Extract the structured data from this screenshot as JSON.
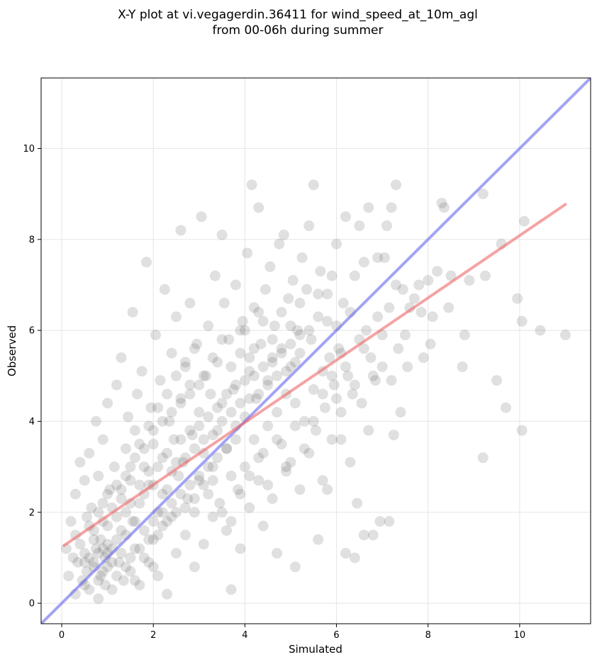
{
  "chart_data": {
    "type": "scatter",
    "title_lines": [
      "X-Y plot at vi.vegagerdin.36411 for wind_speed_at_10m_agl",
      "from 00-06h during summer"
    ],
    "xlabel": "Simulated",
    "ylabel": "Observed",
    "xlim": [
      -0.45,
      11.55
    ],
    "ylim": [
      -0.45,
      11.55
    ],
    "xticks": [
      0,
      2,
      4,
      6,
      8,
      10
    ],
    "yticks": [
      0,
      2,
      4,
      6,
      8,
      10
    ],
    "grid": true,
    "point_color": "#555555",
    "point_opacity": 0.18,
    "identity_line": {
      "x": [
        -0.45,
        11.55
      ],
      "y": [
        -0.45,
        11.55
      ],
      "color": "#6666ee"
    },
    "fit_line": {
      "x": [
        0.05,
        11.0
      ],
      "y": [
        1.27,
        8.77
      ],
      "color": "#ee6666"
    },
    "points": [
      [
        0.1,
        1.2
      ],
      [
        0.15,
        0.6
      ],
      [
        0.2,
        1.8
      ],
      [
        0.25,
        1.0
      ],
      [
        0.3,
        2.4
      ],
      [
        0.3,
        1.5
      ],
      [
        0.35,
        0.9
      ],
      [
        0.4,
        3.1
      ],
      [
        0.4,
        1.3
      ],
      [
        0.45,
        0.5
      ],
      [
        0.5,
        2.7
      ],
      [
        0.5,
        1.1
      ],
      [
        0.55,
        1.9
      ],
      [
        0.55,
        0.7
      ],
      [
        0.6,
        3.3
      ],
      [
        0.6,
        0.3
      ],
      [
        0.65,
        2.1
      ],
      [
        0.7,
        1.6
      ],
      [
        0.7,
        0.9
      ],
      [
        0.75,
        4.0
      ],
      [
        0.75,
        1.2
      ],
      [
        0.8,
        2.8
      ],
      [
        0.8,
        0.1
      ],
      [
        0.85,
        1.4
      ],
      [
        0.85,
        0.6
      ],
      [
        0.9,
        3.6
      ],
      [
        0.9,
        2.2
      ],
      [
        0.95,
        1.0
      ],
      [
        0.95,
        0.4
      ],
      [
        1.0,
        4.4
      ],
      [
        1.0,
        1.7
      ],
      [
        1.0,
        0.8
      ],
      [
        1.05,
        2.5
      ],
      [
        1.1,
        1.2
      ],
      [
        1.1,
        0.3
      ],
      [
        1.15,
        3.0
      ],
      [
        1.2,
        4.8
      ],
      [
        1.2,
        1.9
      ],
      [
        1.25,
        0.9
      ],
      [
        1.3,
        5.4
      ],
      [
        1.3,
        2.3
      ],
      [
        1.3,
        1.1
      ],
      [
        1.35,
        0.5
      ],
      [
        1.4,
        3.4
      ],
      [
        1.4,
        1.5
      ],
      [
        1.45,
        4.1
      ],
      [
        1.5,
        2.7
      ],
      [
        1.5,
        0.7
      ],
      [
        1.55,
        6.4
      ],
      [
        1.55,
        1.8
      ],
      [
        1.6,
        3.8
      ],
      [
        1.6,
        1.2
      ],
      [
        1.65,
        4.6
      ],
      [
        1.7,
        2.2
      ],
      [
        1.7,
        0.4
      ],
      [
        1.75,
        5.1
      ],
      [
        1.8,
        3.0
      ],
      [
        1.8,
        1.6
      ],
      [
        1.85,
        7.5
      ],
      [
        1.9,
        2.6
      ],
      [
        1.9,
        0.9
      ],
      [
        1.95,
        4.3
      ],
      [
        2.0,
        3.5
      ],
      [
        2.0,
        1.4
      ],
      [
        2.05,
        5.9
      ],
      [
        2.1,
        2.0
      ],
      [
        2.1,
        0.6
      ],
      [
        2.15,
        4.9
      ],
      [
        2.2,
        3.2
      ],
      [
        2.2,
        1.7
      ],
      [
        2.25,
        6.9
      ],
      [
        2.3,
        2.5
      ],
      [
        2.3,
        0.2
      ],
      [
        2.35,
        4.0
      ],
      [
        2.4,
        5.5
      ],
      [
        2.4,
        1.9
      ],
      [
        2.45,
        3.6
      ],
      [
        2.5,
        6.3
      ],
      [
        2.5,
        1.1
      ],
      [
        2.55,
        2.8
      ],
      [
        2.6,
        4.5
      ],
      [
        2.6,
        8.2
      ],
      [
        2.65,
        3.1
      ],
      [
        2.7,
        5.2
      ],
      [
        2.7,
        1.5
      ],
      [
        2.75,
        2.3
      ],
      [
        2.8,
        4.8
      ],
      [
        2.8,
        6.6
      ],
      [
        2.85,
        3.7
      ],
      [
        2.9,
        2.0
      ],
      [
        2.9,
        0.8
      ],
      [
        2.95,
        5.7
      ],
      [
        3.0,
        4.2
      ],
      [
        3.0,
        2.7
      ],
      [
        3.05,
        8.5
      ],
      [
        3.1,
        3.3
      ],
      [
        3.1,
        1.3
      ],
      [
        3.15,
        5.0
      ],
      [
        3.2,
        6.1
      ],
      [
        3.2,
        2.4
      ],
      [
        3.25,
        4.6
      ],
      [
        3.3,
        3.0
      ],
      [
        3.3,
        1.9
      ],
      [
        3.35,
        7.2
      ],
      [
        3.4,
        5.3
      ],
      [
        3.4,
        3.8
      ],
      [
        3.45,
        2.2
      ],
      [
        3.5,
        8.1
      ],
      [
        3.5,
        4.4
      ],
      [
        3.55,
        6.6
      ],
      [
        3.6,
        3.4
      ],
      [
        3.6,
        1.6
      ],
      [
        3.65,
        5.8
      ],
      [
        3.7,
        2.8
      ],
      [
        3.7,
        0.3
      ],
      [
        3.75,
        4.7
      ],
      [
        3.8,
        7.0
      ],
      [
        3.8,
        3.9
      ],
      [
        3.85,
        2.5
      ],
      [
        3.9,
        5.5
      ],
      [
        3.9,
        1.2
      ],
      [
        3.95,
        6.2
      ],
      [
        4.0,
        4.1
      ],
      [
        4.0,
        3.0
      ],
      [
        4.05,
        7.7
      ],
      [
        4.1,
        5.1
      ],
      [
        4.1,
        2.1
      ],
      [
        4.15,
        9.2
      ],
      [
        4.2,
        3.6
      ],
      [
        4.2,
        6.5
      ],
      [
        4.25,
        4.5
      ],
      [
        4.3,
        8.7
      ],
      [
        4.3,
        2.7
      ],
      [
        4.35,
        5.7
      ],
      [
        4.4,
        3.3
      ],
      [
        4.4,
        1.7
      ],
      [
        4.45,
        6.9
      ],
      [
        4.5,
        4.8
      ],
      [
        4.5,
        3.9
      ],
      [
        4.55,
        7.4
      ],
      [
        4.6,
        5.3
      ],
      [
        4.6,
        2.3
      ],
      [
        4.65,
        6.1
      ],
      [
        4.7,
        4.2
      ],
      [
        4.7,
        1.1
      ],
      [
        4.75,
        7.9
      ],
      [
        4.8,
        5.6
      ],
      [
        4.8,
        3.5
      ],
      [
        4.85,
        8.1
      ],
      [
        4.9,
        4.6
      ],
      [
        4.9,
        2.9
      ],
      [
        4.95,
        6.7
      ],
      [
        5.0,
        5.2
      ],
      [
        5.0,
        3.1
      ],
      [
        5.05,
        7.1
      ],
      [
        5.1,
        4.4
      ],
      [
        5.1,
        0.8
      ],
      [
        5.15,
        6.0
      ],
      [
        5.2,
        5.5
      ],
      [
        5.2,
        2.5
      ],
      [
        5.25,
        7.6
      ],
      [
        5.3,
        4.0
      ],
      [
        5.35,
        6.9
      ],
      [
        5.4,
        3.3
      ],
      [
        5.4,
        8.3
      ],
      [
        5.45,
        5.8
      ],
      [
        5.5,
        4.7
      ],
      [
        5.5,
        9.2
      ],
      [
        5.55,
        3.8
      ],
      [
        5.6,
        6.3
      ],
      [
        5.6,
        1.4
      ],
      [
        5.65,
        7.3
      ],
      [
        5.7,
        5.1
      ],
      [
        5.7,
        2.7
      ],
      [
        5.75,
        4.3
      ],
      [
        5.8,
        6.8
      ],
      [
        5.8,
        2.5
      ],
      [
        5.85,
        5.4
      ],
      [
        5.9,
        7.2
      ],
      [
        5.9,
        3.6
      ],
      [
        5.95,
        4.8
      ],
      [
        6.0,
        6.1
      ],
      [
        6.0,
        7.9
      ],
      [
        6.05,
        5.6
      ],
      [
        6.1,
        4.2
      ],
      [
        6.1,
        3.6
      ],
      [
        6.15,
        6.6
      ],
      [
        6.2,
        1.1
      ],
      [
        6.2,
        8.5
      ],
      [
        6.25,
        5.0
      ],
      [
        6.3,
        6.4
      ],
      [
        6.3,
        3.1
      ],
      [
        6.35,
        4.6
      ],
      [
        6.4,
        7.2
      ],
      [
        6.4,
        1.0
      ],
      [
        6.45,
        2.2
      ],
      [
        6.5,
        5.8
      ],
      [
        6.5,
        8.3
      ],
      [
        6.55,
        4.4
      ],
      [
        6.6,
        7.5
      ],
      [
        6.6,
        1.5
      ],
      [
        6.65,
        6.0
      ],
      [
        6.7,
        8.7
      ],
      [
        6.7,
        3.8
      ],
      [
        6.75,
        5.4
      ],
      [
        6.8,
        1.5
      ],
      [
        6.85,
        4.9
      ],
      [
        6.9,
        7.6
      ],
      [
        6.9,
        6.3
      ],
      [
        6.95,
        1.8
      ],
      [
        7.0,
        5.2
      ],
      [
        7.05,
        7.6
      ],
      [
        7.1,
        8.3
      ],
      [
        7.15,
        6.5
      ],
      [
        7.15,
        1.8
      ],
      [
        7.2,
        8.7
      ],
      [
        7.2,
        4.9
      ],
      [
        7.25,
        3.7
      ],
      [
        7.3,
        9.2
      ],
      [
        7.3,
        7.0
      ],
      [
        7.35,
        5.6
      ],
      [
        7.4,
        4.2
      ],
      [
        7.45,
        6.9
      ],
      [
        7.5,
        5.9
      ],
      [
        7.55,
        5.2
      ],
      [
        7.6,
        6.5
      ],
      [
        7.7,
        6.7
      ],
      [
        7.8,
        7.0
      ],
      [
        7.85,
        6.4
      ],
      [
        7.9,
        5.4
      ],
      [
        8.0,
        7.1
      ],
      [
        8.05,
        5.7
      ],
      [
        8.1,
        6.3
      ],
      [
        8.2,
        7.3
      ],
      [
        8.3,
        8.8
      ],
      [
        8.35,
        8.7
      ],
      [
        8.45,
        6.5
      ],
      [
        8.5,
        7.2
      ],
      [
        8.75,
        5.2
      ],
      [
        8.8,
        5.9
      ],
      [
        8.9,
        7.1
      ],
      [
        9.2,
        9.0
      ],
      [
        9.2,
        3.2
      ],
      [
        9.25,
        7.2
      ],
      [
        9.5,
        4.9
      ],
      [
        9.6,
        7.9
      ],
      [
        9.7,
        4.3
      ],
      [
        9.95,
        6.7
      ],
      [
        10.05,
        6.2
      ],
      [
        10.05,
        3.8
      ],
      [
        10.1,
        8.4
      ],
      [
        10.45,
        6.0
      ],
      [
        11.0,
        5.9
      ],
      [
        0.6,
        1.0
      ],
      [
        0.8,
        1.1
      ],
      [
        0.9,
        1.2
      ],
      [
        1.0,
        1.1
      ],
      [
        0.7,
        0.8
      ],
      [
        1.1,
        0.9
      ],
      [
        1.2,
        1.4
      ],
      [
        0.9,
        0.7
      ],
      [
        1.3,
        1.6
      ],
      [
        1.0,
        1.3
      ],
      [
        0.8,
        0.5
      ],
      [
        1.4,
        2.0
      ],
      [
        1.5,
        2.2
      ],
      [
        1.6,
        1.8
      ],
      [
        1.7,
        2.6
      ],
      [
        1.8,
        2.4
      ],
      [
        1.9,
        2.9
      ],
      [
        2.0,
        2.6
      ],
      [
        2.1,
        3.0
      ],
      [
        2.2,
        2.4
      ],
      [
        2.3,
        3.3
      ],
      [
        2.4,
        2.9
      ],
      [
        2.5,
        3.1
      ],
      [
        2.6,
        3.6
      ],
      [
        2.7,
        3.2
      ],
      [
        2.8,
        3.8
      ],
      [
        2.9,
        3.4
      ],
      [
        3.0,
        3.9
      ],
      [
        3.1,
        3.6
      ],
      [
        3.2,
        4.1
      ],
      [
        3.3,
        3.7
      ],
      [
        3.4,
        4.3
      ],
      [
        3.5,
        4.0
      ],
      [
        3.6,
        4.6
      ],
      [
        3.7,
        4.2
      ],
      [
        3.8,
        4.8
      ],
      [
        3.9,
        4.4
      ],
      [
        4.0,
        4.9
      ],
      [
        4.1,
        4.5
      ],
      [
        4.2,
        5.0
      ],
      [
        4.3,
        4.6
      ],
      [
        4.4,
        5.2
      ],
      [
        4.5,
        4.9
      ],
      [
        4.6,
        5.4
      ],
      [
        4.7,
        5.0
      ],
      [
        4.8,
        5.5
      ],
      [
        4.9,
        5.1
      ],
      [
        5.0,
        5.7
      ],
      [
        5.1,
        5.3
      ],
      [
        5.2,
        5.9
      ],
      [
        2.0,
        1.8
      ],
      [
        2.2,
        2.0
      ],
      [
        2.4,
        2.2
      ],
      [
        2.6,
        2.4
      ],
      [
        2.8,
        2.6
      ],
      [
        3.0,
        2.8
      ],
      [
        3.2,
        3.0
      ],
      [
        3.4,
        3.2
      ],
      [
        3.6,
        3.4
      ],
      [
        3.8,
        3.6
      ],
      [
        1.2,
        2.6
      ],
      [
        1.4,
        2.8
      ],
      [
        1.6,
        3.2
      ],
      [
        1.8,
        3.4
      ],
      [
        2.0,
        3.8
      ],
      [
        2.2,
        4.0
      ],
      [
        2.4,
        4.2
      ],
      [
        2.6,
        4.4
      ],
      [
        2.8,
        4.6
      ],
      [
        3.0,
        4.8
      ],
      [
        1.5,
        1.0
      ],
      [
        1.7,
        1.2
      ],
      [
        1.9,
        1.4
      ],
      [
        2.1,
        1.5
      ],
      [
        2.3,
        1.8
      ],
      [
        2.5,
        2.0
      ],
      [
        2.7,
        2.1
      ],
      [
        2.9,
        2.3
      ],
      [
        3.1,
        2.6
      ],
      [
        3.3,
        2.7
      ],
      [
        0.5,
        0.9
      ],
      [
        0.7,
        1.4
      ],
      [
        0.9,
        1.8
      ],
      [
        1.1,
        2.1
      ],
      [
        1.3,
        2.5
      ],
      [
        1.5,
        3.0
      ],
      [
        1.7,
        3.5
      ],
      [
        1.9,
        3.9
      ],
      [
        2.1,
        4.3
      ],
      [
        2.3,
        4.6
      ],
      [
        3.5,
        2.0
      ],
      [
        3.7,
        1.8
      ],
      [
        3.9,
        2.4
      ],
      [
        4.1,
        2.8
      ],
      [
        4.3,
        3.2
      ],
      [
        4.5,
        2.6
      ],
      [
        4.7,
        3.6
      ],
      [
        4.9,
        3.0
      ],
      [
        5.1,
        3.9
      ],
      [
        5.3,
        3.4
      ],
      [
        4.0,
        6.0
      ],
      [
        4.2,
        5.6
      ],
      [
        4.4,
        6.2
      ],
      [
        4.6,
        5.8
      ],
      [
        4.8,
        6.4
      ],
      [
        5.0,
        6.1
      ],
      [
        5.2,
        6.6
      ],
      [
        5.4,
        6.0
      ],
      [
        5.6,
        6.8
      ],
      [
        5.8,
        6.2
      ],
      [
        0.3,
        0.2
      ],
      [
        0.5,
        0.4
      ],
      [
        0.6,
        1.7
      ],
      [
        0.8,
        2.0
      ],
      [
        1.0,
        2.4
      ],
      [
        1.2,
        0.6
      ],
      [
        1.4,
        0.8
      ],
      [
        1.6,
        0.5
      ],
      [
        1.8,
        1.0
      ],
      [
        2.0,
        0.8
      ],
      [
        6.0,
        4.5
      ],
      [
        6.2,
        5.2
      ],
      [
        6.4,
        4.8
      ],
      [
        6.6,
        5.6
      ],
      [
        6.8,
        5.0
      ],
      [
        7.0,
        5.9
      ],
      [
        5.5,
        4.0
      ],
      [
        5.7,
        4.6
      ],
      [
        5.9,
        5.0
      ],
      [
        6.1,
        5.5
      ],
      [
        2.5,
        5.0
      ],
      [
        2.7,
        5.3
      ],
      [
        2.9,
        5.6
      ],
      [
        3.1,
        5.0
      ],
      [
        3.3,
        5.4
      ],
      [
        3.5,
        5.8
      ],
      [
        3.7,
        5.2
      ],
      [
        3.9,
        6.0
      ],
      [
        4.1,
        5.4
      ],
      [
        4.3,
        6.4
      ]
    ]
  }
}
